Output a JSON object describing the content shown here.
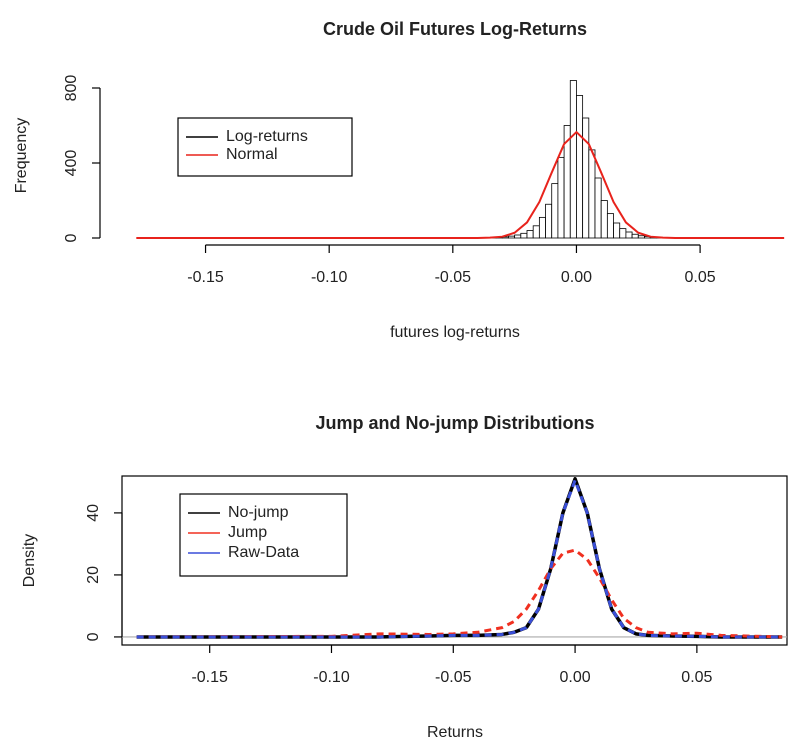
{
  "chart_data": [
    {
      "type": "histogram",
      "title": "Crude Oil Futures Log-Returns",
      "x_label": "futures log-returns",
      "y_label": "Frequency",
      "xlim": [
        -0.185,
        0.09
      ],
      "ylim": [
        0,
        880
      ],
      "xticks": [
        -0.15,
        {
          "value": -0.1,
          "label": "-0.10"
        },
        -0.05,
        {
          "value": 0,
          "label": "0.00"
        },
        0.05
      ],
      "yticks": [
        0,
        400,
        800
      ],
      "box": false,
      "legend": "top-left",
      "series": [
        {
          "name": "Log-returns",
          "type": "histogram",
          "color": "#000000",
          "fill": "#ffffff",
          "bins": [
            -0.0375,
            -0.035,
            -0.0325,
            -0.03,
            -0.0275,
            -0.025,
            -0.0225,
            -0.02,
            -0.0175,
            -0.015,
            -0.0125,
            -0.01,
            -0.0075,
            -0.005,
            -0.0025,
            0,
            0.0025,
            0.005,
            0.0075,
            0.01,
            0.0125,
            0.015,
            0.0175,
            0.02,
            0.0225,
            0.025,
            0.0275,
            0.03,
            0.0325,
            0.035,
            0.0375
          ],
          "values": [
            2,
            3,
            4,
            6,
            10,
            16,
            25,
            40,
            65,
            110,
            180,
            290,
            430,
            600,
            840,
            760,
            640,
            470,
            320,
            200,
            130,
            80,
            50,
            32,
            20,
            12,
            8,
            5,
            3,
            2
          ]
        },
        {
          "name": "Normal",
          "type": "line",
          "color": "#e8231c",
          "linestyle": "solid",
          "x": [
            -0.178,
            -0.04,
            -0.035,
            -0.03,
            -0.025,
            -0.02,
            -0.015,
            -0.01,
            -0.005,
            0,
            0.005,
            0.01,
            0.015,
            0.02,
            0.025,
            0.03,
            0.035,
            0.04,
            0.084
          ],
          "values": [
            0,
            0,
            2,
            7,
            28,
            83,
            192,
            349,
            501,
            565,
            501,
            349,
            192,
            83,
            28,
            7,
            2,
            0,
            0
          ]
        }
      ]
    },
    {
      "type": "line",
      "title": "Jump and No-jump Distributions",
      "x_label": "Returns",
      "y_label": "Density",
      "xlim": [
        -0.186,
        0.087
      ],
      "ylim": [
        -2.6,
        51.9
      ],
      "xticks": [
        -0.15,
        {
          "value": -0.1,
          "label": "-0.10"
        },
        -0.05,
        {
          "value": 0,
          "label": "0.00"
        },
        0.05
      ],
      "yticks": [
        0,
        20,
        40
      ],
      "box": true,
      "zero_line": true,
      "legend": "top-left",
      "x": [
        -0.18,
        -0.1,
        -0.08,
        -0.06,
        -0.05,
        -0.04,
        -0.03,
        -0.025,
        -0.02,
        -0.015,
        -0.01,
        -0.005,
        0,
        0.005,
        0.01,
        0.015,
        0.02,
        0.025,
        0.03,
        0.04,
        0.05,
        0.06,
        0.085
      ],
      "series": [
        {
          "name": "No-jump",
          "color": "#000000",
          "linestyle": "solid",
          "values": [
            0,
            0,
            0,
            0.3,
            0.5,
            0.5,
            0.8,
            1.5,
            3,
            9,
            22,
            40,
            51,
            40,
            22,
            9,
            3,
            1,
            0.5,
            0.3,
            0.2,
            0,
            0
          ]
        },
        {
          "name": "Jump",
          "color": "#f03020",
          "linestyle": "dashed",
          "values": [
            0,
            0.2,
            1,
            0.8,
            1,
            1.5,
            3,
            5,
            9,
            15,
            22,
            27,
            28,
            25,
            19,
            12,
            6,
            3,
            1.5,
            1,
            1.2,
            0.5,
            0
          ]
        },
        {
          "name": "Raw-Data",
          "color": "#3a4fd8",
          "linestyle": "dashed",
          "values": [
            0,
            0,
            0,
            0.3,
            0.5,
            0.5,
            0.8,
            1.5,
            3,
            9,
            22,
            40,
            50.5,
            40,
            22,
            9,
            3,
            1,
            0.5,
            0.3,
            0.2,
            0,
            0
          ]
        }
      ]
    }
  ]
}
